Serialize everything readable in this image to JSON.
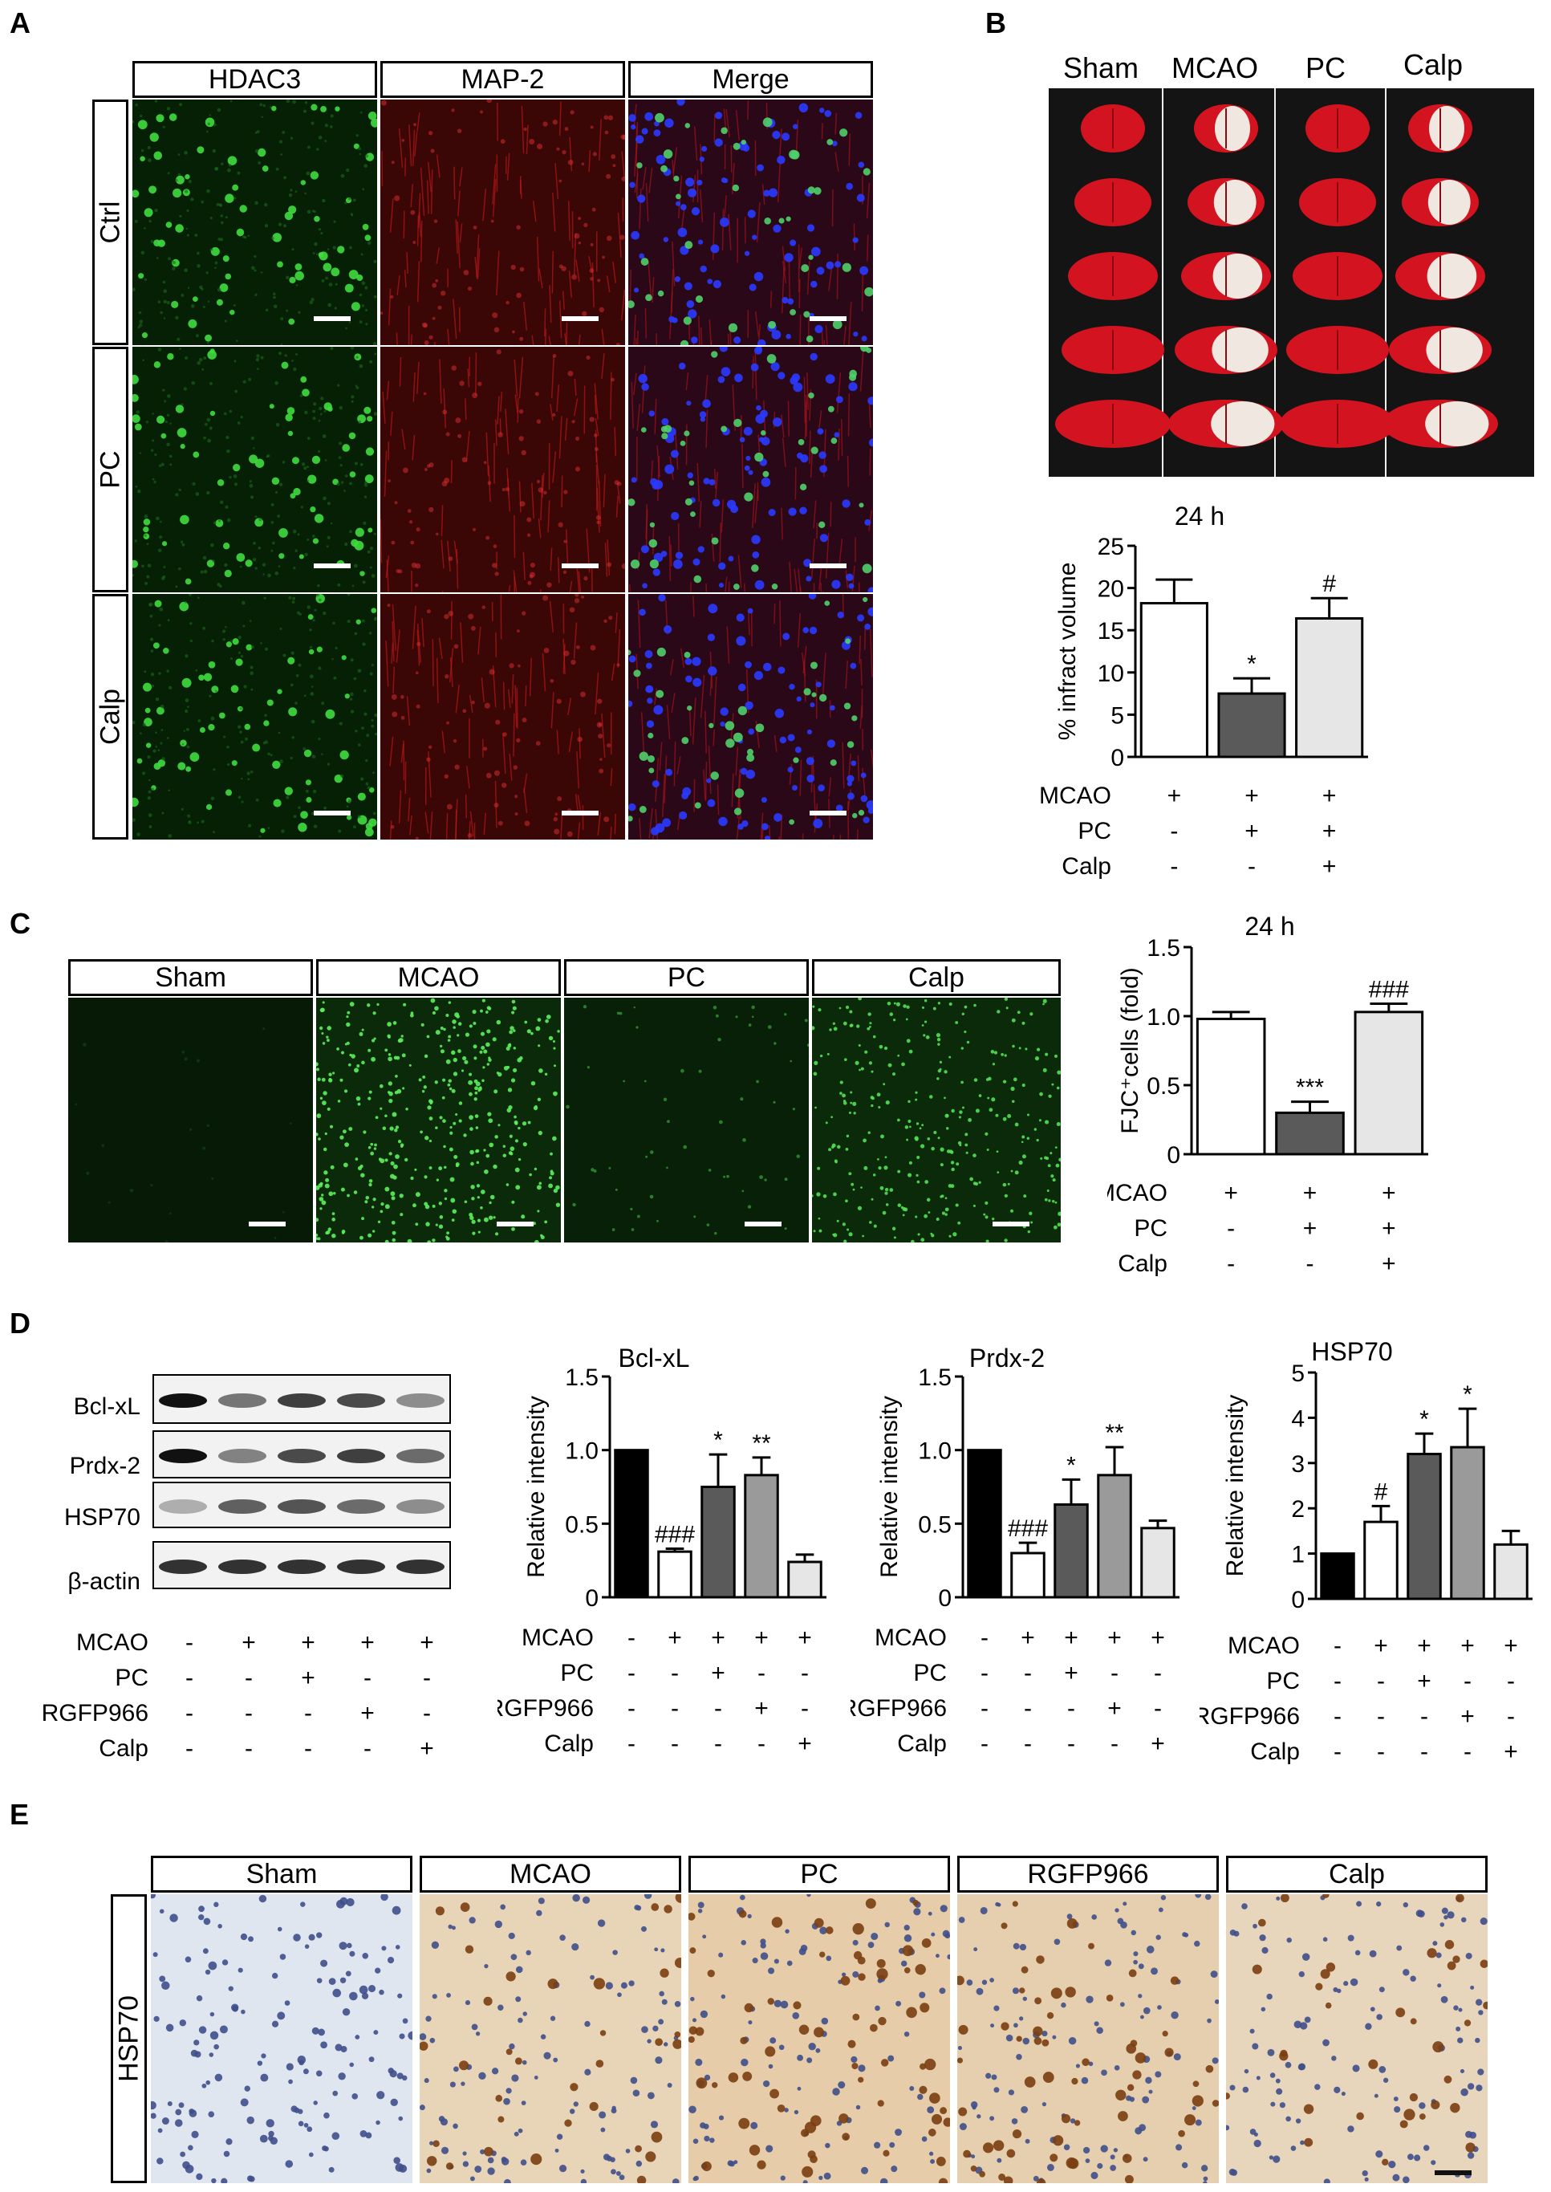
{
  "panelA": {
    "letter": "A",
    "columns": [
      "HDAC3",
      "MAP-2",
      "Merge"
    ],
    "rows": [
      "Ctrl",
      "PC",
      "Calp"
    ]
  },
  "panelB": {
    "letter": "B",
    "columns": [
      "Sham",
      "MCAO",
      "PC",
      "Calp"
    ]
  },
  "panelC": {
    "letter": "C",
    "columns": [
      "Sham",
      "MCAO",
      "PC",
      "Calp"
    ]
  },
  "panelD": {
    "letter": "D",
    "blot_labels": [
      "Bcl-xL",
      "Prdx-2",
      "HSP70",
      "β-actin"
    ]
  },
  "panelE": {
    "letter": "E",
    "columns": [
      "Sham",
      "MCAO",
      "PC",
      "RGFP966",
      "Calp"
    ],
    "row": "HSP70"
  },
  "treatments3": {
    "rows": [
      {
        "label": "MCAO",
        "signs": [
          "+",
          "+",
          "+"
        ]
      },
      {
        "label": "PC",
        "signs": [
          "-",
          "+",
          "+"
        ]
      },
      {
        "label": "Calp",
        "signs": [
          "-",
          "-",
          "+"
        ]
      }
    ]
  },
  "treatments5": {
    "rows": [
      {
        "label": "MCAO",
        "signs": [
          "-",
          "+",
          "+",
          "+",
          "+"
        ]
      },
      {
        "label": "PC",
        "signs": [
          "-",
          "-",
          "+",
          "-",
          "-"
        ]
      },
      {
        "label": "RGFP966",
        "signs": [
          "-",
          "-",
          "-",
          "+",
          "-"
        ]
      },
      {
        "label": "Calp",
        "signs": [
          "-",
          "-",
          "-",
          "-",
          "+"
        ]
      }
    ]
  },
  "chart_data": [
    {
      "id": "infarct",
      "type": "bar",
      "title": "24 h",
      "ylabel": "% infract volume",
      "ylim": [
        0,
        25
      ],
      "yticks": [
        0,
        5,
        10,
        15,
        20,
        25
      ],
      "values": [
        18.2,
        7.5,
        16.4
      ],
      "errors": [
        2.8,
        1.8,
        2.4
      ],
      "annotations": [
        "",
        "*",
        "#"
      ],
      "colors": [
        "#ffffff",
        "#5a5a5a",
        "#e6e6e6"
      ]
    },
    {
      "id": "fjc",
      "type": "bar",
      "title": "24 h",
      "ylabel": "FJC⁺cells (fold)",
      "ylim": [
        0,
        1.5
      ],
      "yticks": [
        0,
        0.5,
        1.0,
        1.5
      ],
      "ytick_labels": [
        "0",
        "0.5",
        "1.0",
        "1.5"
      ],
      "values": [
        0.98,
        0.3,
        1.03
      ],
      "errors": [
        0.05,
        0.08,
        0.06
      ],
      "annotations": [
        "",
        "***",
        "###"
      ],
      "colors": [
        "#ffffff",
        "#5a5a5a",
        "#e6e6e6"
      ]
    },
    {
      "id": "bclxl",
      "type": "bar",
      "title": "Bcl-xL",
      "ylabel": "Relative intensity",
      "ylim": [
        0,
        1.5
      ],
      "yticks": [
        0,
        0.5,
        1.0,
        1.5
      ],
      "ytick_labels": [
        "0",
        "0.5",
        "1.0",
        "1.5"
      ],
      "values": [
        1.0,
        0.31,
        0.75,
        0.83,
        0.24
      ],
      "errors": [
        0,
        0.02,
        0.22,
        0.12,
        0.05
      ],
      "annotations": [
        "",
        "###",
        "*",
        "**",
        ""
      ],
      "colors": [
        "#000000",
        "#ffffff",
        "#5a5a5a",
        "#9a9a9a",
        "#e6e6e6"
      ]
    },
    {
      "id": "prdx2",
      "type": "bar",
      "title": "Prdx-2",
      "ylabel": "Relative intensity",
      "ylim": [
        0,
        1.5
      ],
      "yticks": [
        0,
        0.5,
        1.0,
        1.5
      ],
      "ytick_labels": [
        "0",
        "0.5",
        "1.0",
        "1.5"
      ],
      "values": [
        1.0,
        0.3,
        0.63,
        0.83,
        0.47
      ],
      "errors": [
        0,
        0.07,
        0.17,
        0.19,
        0.05
      ],
      "annotations": [
        "",
        "###",
        "*",
        "**",
        ""
      ],
      "colors": [
        "#000000",
        "#ffffff",
        "#5a5a5a",
        "#9a9a9a",
        "#e6e6e6"
      ]
    },
    {
      "id": "hsp70",
      "type": "bar",
      "title": "HSP70",
      "ylabel": "Relative intensity",
      "ylim": [
        0,
        5
      ],
      "yticks": [
        0,
        1,
        2,
        3,
        4,
        5
      ],
      "values": [
        1.0,
        1.7,
        3.2,
        3.35,
        1.2
      ],
      "errors": [
        0,
        0.35,
        0.45,
        0.85,
        0.3
      ],
      "annotations": [
        "",
        "#",
        "*",
        "*",
        ""
      ],
      "colors": [
        "#000000",
        "#ffffff",
        "#5a5a5a",
        "#9a9a9a",
        "#e6e6e6"
      ]
    }
  ]
}
